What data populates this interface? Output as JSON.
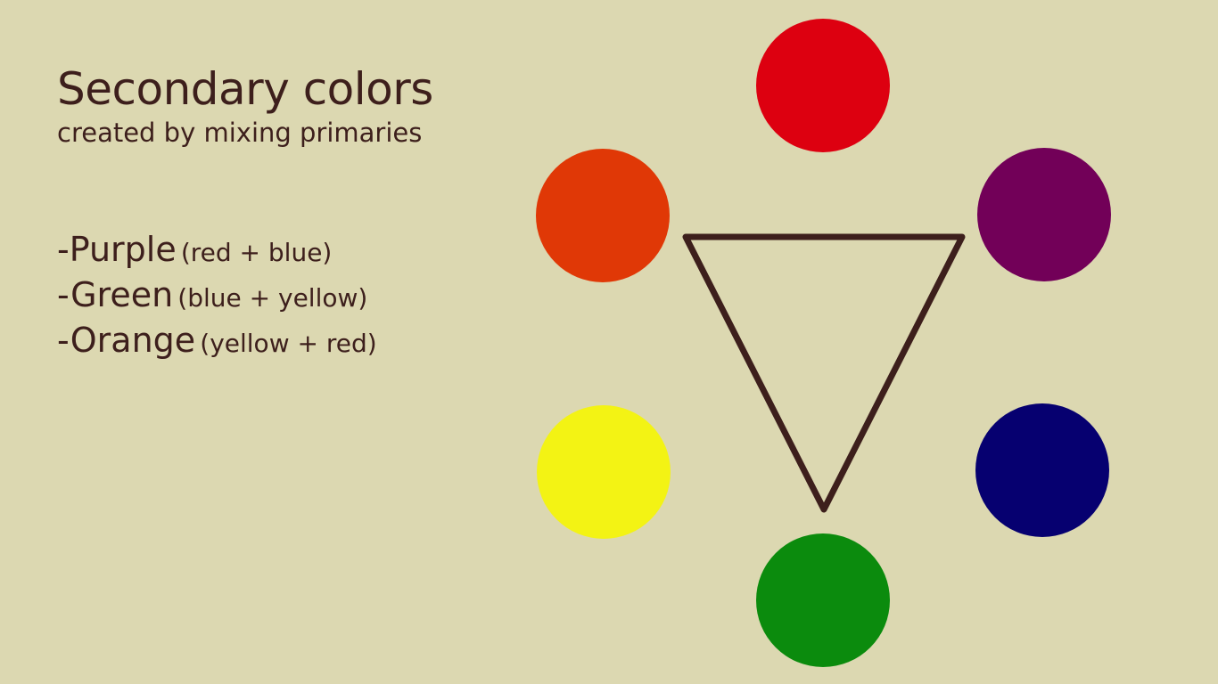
{
  "slide": {
    "title": "Secondary colors",
    "subtitle": "created by mixing primaries",
    "items": [
      {
        "name": "-Purple",
        "mix": "(red + blue)"
      },
      {
        "name": "-Green",
        "mix": "(blue + yellow)"
      },
      {
        "name": "-Orange",
        "mix": "(yellow + red)"
      }
    ]
  },
  "colors": {
    "background": "#dcd8b1",
    "text": "#3d1f1c",
    "triangle_stroke": "#3d1f1c",
    "red": "#dd0010",
    "purple": "#720058",
    "blue": "#060070",
    "green": "#0b8b0d",
    "yellow": "#f3f314",
    "orange": "#e03806"
  }
}
